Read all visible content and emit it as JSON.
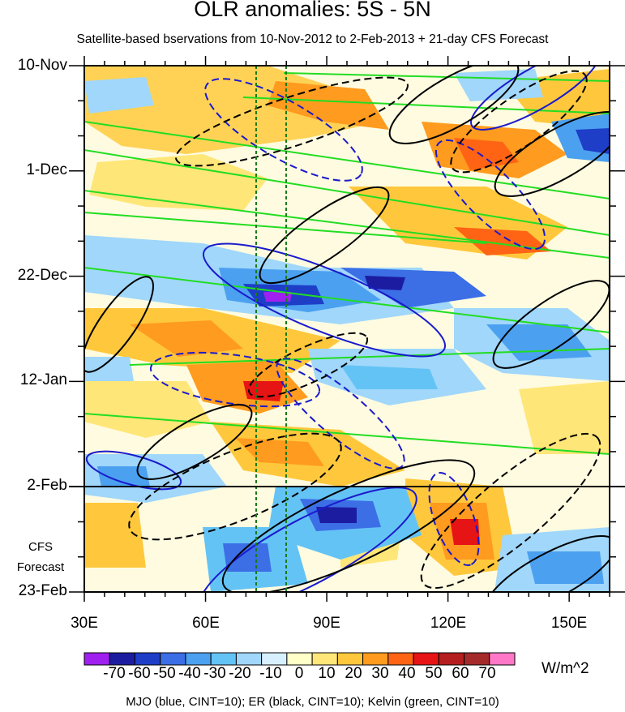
{
  "chart_data": {
    "type": "heatmap",
    "title": "OLR anomalies: 5S - 5N",
    "subtitle": "Satellite-based bservations from 10-Nov-2012 to 2-Feb-2013 + 21-day CFS Forecast",
    "x_axis": {
      "ticks": [
        "30E",
        "60E",
        "90E",
        "120E",
        "150E"
      ],
      "range_deg": [
        30,
        160
      ]
    },
    "y_axis": {
      "ticks": [
        "10-Nov",
        "1-Dec",
        "22-Dec",
        "12-Jan",
        "2-Feb",
        "23-Feb"
      ]
    },
    "forecast_label": [
      "CFS",
      "Forecast"
    ],
    "forecast_start": "2-Feb",
    "reference_meridians_deg": [
      72,
      80
    ],
    "colorbar": {
      "labels": [
        "-70",
        "-60",
        "-50",
        "-40",
        "-30",
        "-20",
        "-10",
        "0",
        "10",
        "20",
        "30",
        "40",
        "50",
        "60",
        "70"
      ],
      "colors": [
        "#a020f0",
        "#1c1ca0",
        "#1e3ec8",
        "#3c6ee6",
        "#4ba0f0",
        "#64c3f5",
        "#a0d7fa",
        "#d7f0ff",
        "#ffffc8",
        "#ffe678",
        "#ffc83c",
        "#ff9b1e",
        "#ff6414",
        "#e61414",
        "#b41e1e",
        "#a52a2a",
        "#ff78c8"
      ],
      "units": "W/m^2"
    },
    "contour_note": "MJO (blue, CINT=10); ER (black, CINT=10); Kelvin (green, CINT=10)"
  }
}
